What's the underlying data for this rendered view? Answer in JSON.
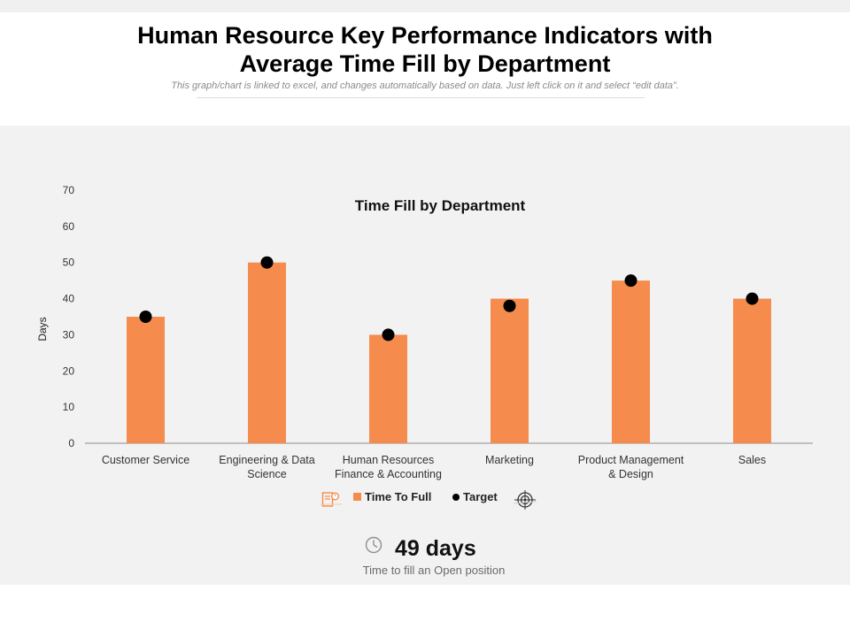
{
  "header": {
    "title_line1": "Human Resource Key Performance Indicators with",
    "title_line2": "Average Time Fill by Department",
    "subtitle": "This graph/chart is linked to excel, and changes automatically based on data. Just left click on it and select “edit data”."
  },
  "colors": {
    "bar": "#f58b4c",
    "target": "#000000",
    "panel": "#f2f2f2",
    "icon_accent": "#f58b4c"
  },
  "chart_data": {
    "type": "bar",
    "title": "Time Fill by Department",
    "ylabel": "Days",
    "xlabel": "",
    "ylim": [
      0,
      70
    ],
    "yticks": [
      0,
      10,
      20,
      30,
      40,
      50,
      60,
      70
    ],
    "grid": false,
    "legend_position": "bottom",
    "categories": [
      [
        "Customer Service"
      ],
      [
        "Engineering & Data",
        "Science"
      ],
      [
        "Human Resources",
        "Finance & Accounting"
      ],
      [
        "Marketing"
      ],
      [
        "Product Management",
        "& Design"
      ],
      [
        "Sales"
      ]
    ],
    "series": [
      {
        "name": "Time To Full",
        "kind": "bar",
        "values": [
          35,
          50,
          30,
          40,
          45,
          40
        ]
      },
      {
        "name": "Target",
        "kind": "marker",
        "values": [
          35,
          50,
          30,
          38,
          45,
          40
        ]
      }
    ]
  },
  "legend": {
    "bar_label": "Time To Full",
    "target_label": "Target",
    "icons": [
      "document-icon",
      "target-icon"
    ]
  },
  "kpi": {
    "value": "49 days",
    "caption": "Time to fill an Open position",
    "icon": "clock-icon"
  }
}
